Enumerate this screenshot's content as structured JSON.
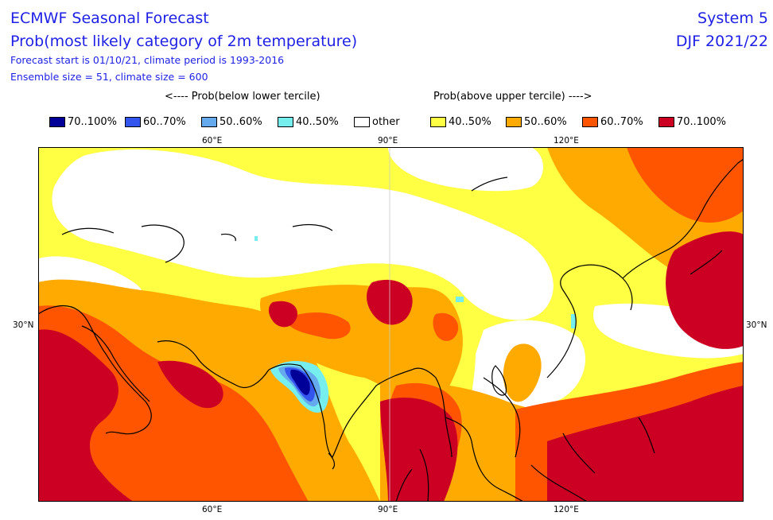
{
  "header": {
    "title": "ECMWF Seasonal Forecast",
    "subtitle": "Prob(most likely category of 2m temperature)",
    "forecast_line": "Forecast start is 01/10/21, climate period is 1993-2016",
    "ensemble_line": "Ensemble size = 51, climate size = 600",
    "system": "System 5",
    "season": "DJF 2021/22"
  },
  "legend": {
    "below_label": "<---- Prob(below lower tercile)",
    "above_label": "Prob(above upper tercile) ---->",
    "items": [
      {
        "label": "70..100%",
        "color": "#000099"
      },
      {
        "label": "60..70%",
        "color": "#3355ee"
      },
      {
        "label": "50..60%",
        "color": "#66aaee"
      },
      {
        "label": "40..50%",
        "color": "#77eeee"
      },
      {
        "label": "other",
        "color": "#ffffff"
      },
      {
        "label": "40..50%",
        "color": "#ffff44"
      },
      {
        "label": "50..60%",
        "color": "#ffaa00"
      },
      {
        "label": "60..70%",
        "color": "#ff5500"
      },
      {
        "label": "70..100%",
        "color": "#cc0022"
      }
    ]
  },
  "map": {
    "lon_ticks": [
      "60°E",
      "90°E",
      "120°E"
    ],
    "lat_ticks": [
      "30°N"
    ]
  }
}
